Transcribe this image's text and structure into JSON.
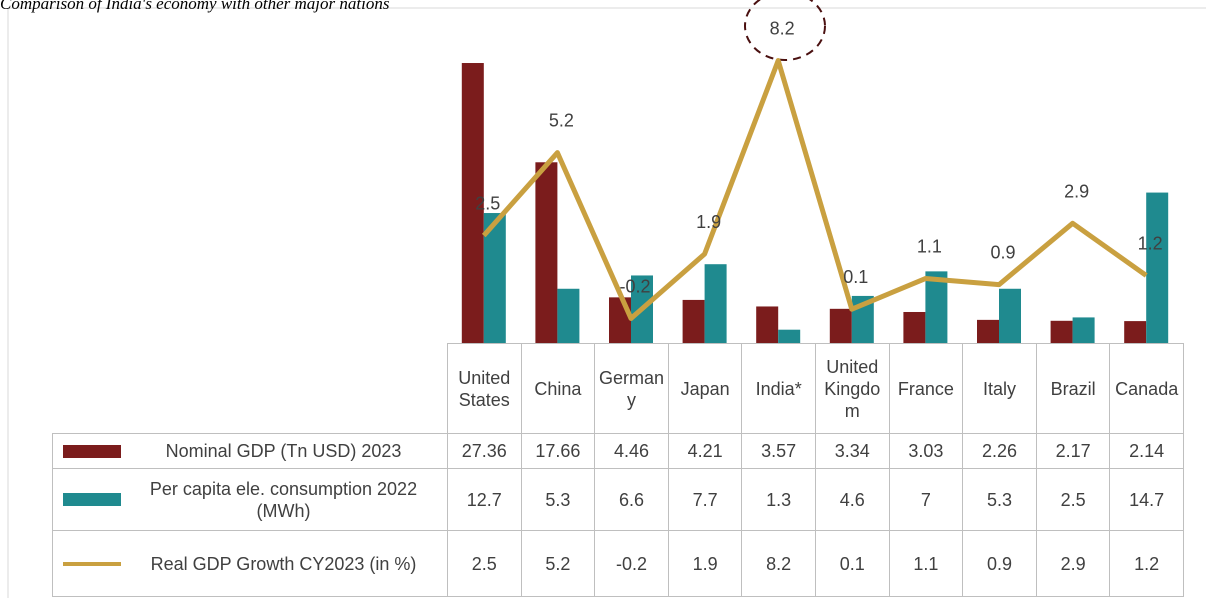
{
  "chart_data": {
    "type": "bar",
    "title": "Comparison of India's economy with other major nations",
    "categories": [
      "United States",
      "China",
      "Germany",
      "Japan",
      "India*",
      "United Kingdom",
      "France",
      "Italy",
      "Brazil",
      "Canada"
    ],
    "series": [
      {
        "name": "Nominal GDP (Tn USD) 2023",
        "color": "#7b1c1c",
        "type": "bar",
        "values": [
          27.36,
          17.66,
          4.46,
          4.21,
          3.57,
          3.34,
          3.03,
          2.26,
          2.17,
          2.14
        ]
      },
      {
        "name": "Per capita ele. consumption 2022 (MWh)",
        "color": "#1f8a8f",
        "type": "bar",
        "values": [
          12.7,
          5.3,
          6.6,
          7.7,
          1.3,
          4.6,
          7,
          5.3,
          2.5,
          14.7
        ]
      },
      {
        "name": "Real GDP Growth CY2023 (in %)",
        "color": "#c9a040",
        "type": "line",
        "axis": "y2",
        "values": [
          2.5,
          5.2,
          -0.2,
          1.9,
          8.2,
          0.1,
          1.1,
          0.9,
          2.9,
          1.2
        ]
      }
    ],
    "ylim": [
      0,
      30
    ],
    "y2lim": [
      -1,
      9
    ],
    "data_table": true
  }
}
